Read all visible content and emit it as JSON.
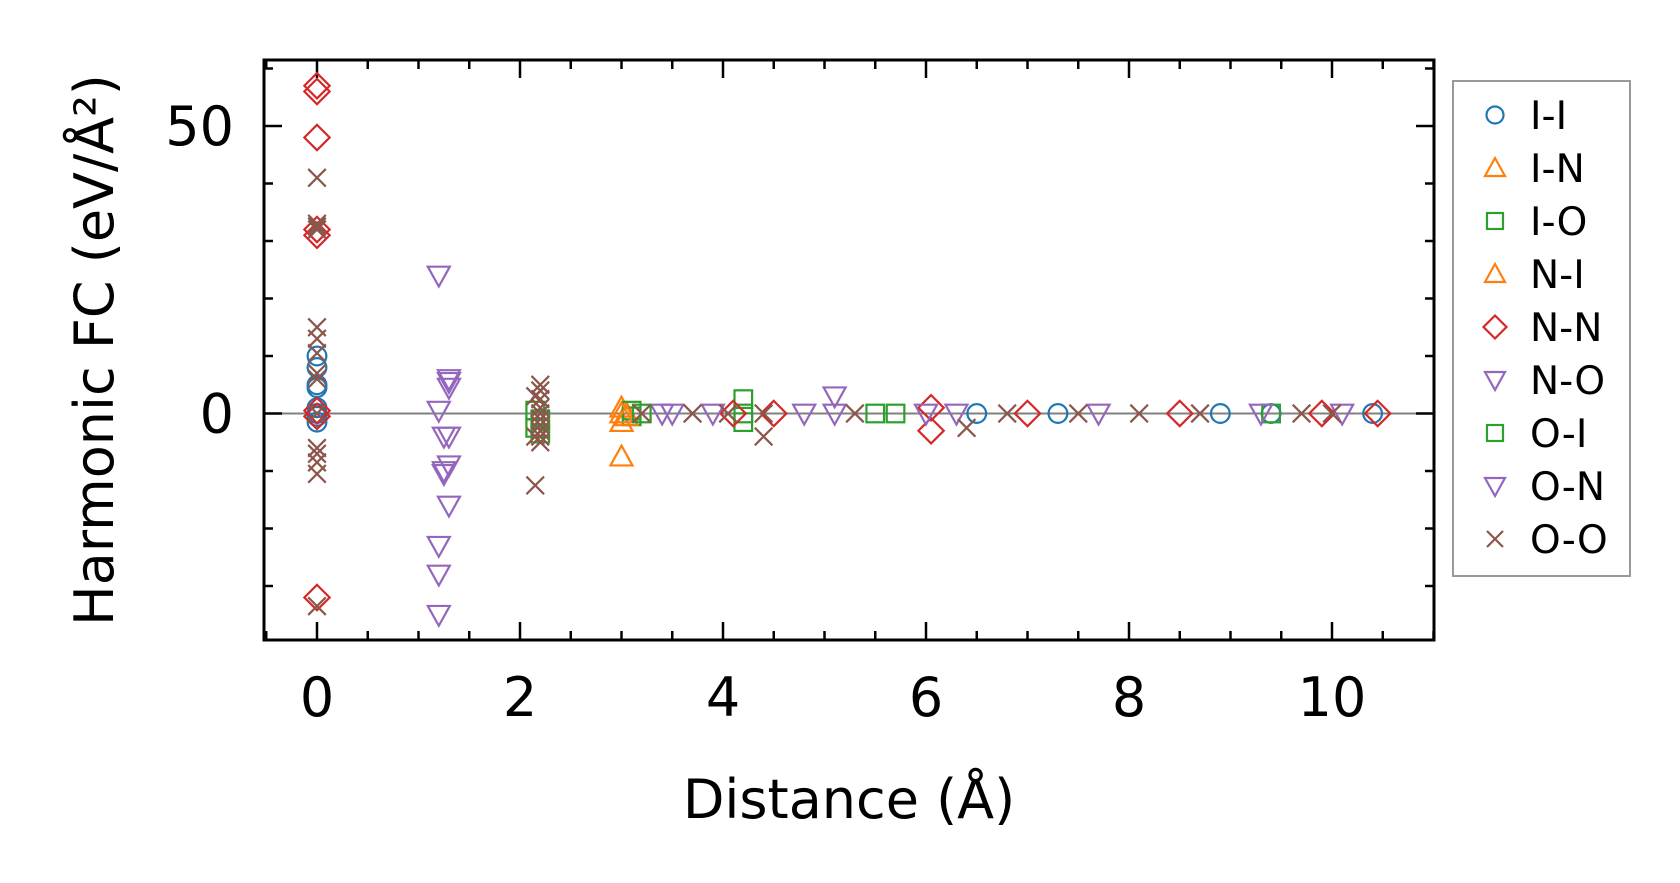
{
  "chart_data": {
    "type": "scatter",
    "xlabel": "Distance (Å)",
    "ylabel": "Harmonic FC (eV/Å²)",
    "xlim": [
      -0.5,
      11.0
    ],
    "ylim": [
      -40,
      62
    ],
    "x_ticks": [
      0,
      2,
      4,
      6,
      8,
      10
    ],
    "x_tick_labels": [
      "0",
      "2",
      "4",
      "6",
      "8",
      "10"
    ],
    "y_ticks": [
      0,
      50
    ],
    "y_tick_labels": [
      "0",
      "50"
    ],
    "grid": false,
    "zero_line": true,
    "legend_position": "right, outside plot",
    "series": [
      {
        "name": "I-I",
        "marker": "circle",
        "color": "#1f77b4",
        "points": [
          [
            0,
            10
          ],
          [
            0,
            8
          ],
          [
            0,
            5
          ],
          [
            0,
            4.5
          ],
          [
            0,
            1
          ],
          [
            0,
            0
          ],
          [
            0,
            -0.5
          ],
          [
            0,
            -1.5
          ],
          [
            10.4,
            0
          ],
          [
            9.4,
            0
          ],
          [
            8.9,
            0
          ],
          [
            6.5,
            0
          ],
          [
            7.3,
            0
          ]
        ]
      },
      {
        "name": "I-N",
        "marker": "triangle-up",
        "color": "#ff7f0e",
        "points": [
          [
            3.0,
            1
          ],
          [
            3.0,
            -1.5
          ],
          [
            3.0,
            -7.5
          ],
          [
            3.05,
            0
          ]
        ]
      },
      {
        "name": "I-O",
        "marker": "square",
        "color": "#2ca02c",
        "points": [
          [
            2.2,
            -1
          ],
          [
            2.2,
            -3.5
          ],
          [
            3.1,
            -0.5
          ],
          [
            3.1,
            0.5
          ],
          [
            4.2,
            2.5
          ],
          [
            4.2,
            0
          ],
          [
            4.2,
            -1.5
          ],
          [
            5.7,
            0
          ],
          [
            9.4,
            0
          ]
        ]
      },
      {
        "name": "N-I",
        "marker": "triangle-up",
        "color": "#ff7f0e",
        "points": [
          [
            3.0,
            0
          ],
          [
            3.05,
            -0.5
          ]
        ]
      },
      {
        "name": "N-N",
        "marker": "diamond",
        "color": "#d62728",
        "points": [
          [
            0,
            57
          ],
          [
            0,
            56
          ],
          [
            0,
            48
          ],
          [
            0,
            32
          ],
          [
            0,
            31
          ],
          [
            0,
            0.5
          ],
          [
            0,
            -0.5
          ],
          [
            0,
            -32
          ],
          [
            4.1,
            0
          ],
          [
            4.5,
            0
          ],
          [
            6.05,
            -3
          ],
          [
            6.05,
            1
          ],
          [
            7.0,
            0
          ],
          [
            8.5,
            0
          ],
          [
            9.9,
            0
          ],
          [
            10.45,
            0
          ]
        ]
      },
      {
        "name": "N-O",
        "marker": "triangle-down",
        "color": "#9467bd",
        "points": [
          [
            1.2,
            24
          ],
          [
            1.2,
            0.5
          ],
          [
            1.25,
            -4
          ],
          [
            1.25,
            -10
          ],
          [
            1.3,
            5.5
          ],
          [
            1.3,
            4.5
          ],
          [
            1.3,
            -4
          ],
          [
            1.3,
            -9
          ],
          [
            1.3,
            -16
          ],
          [
            1.2,
            -23
          ],
          [
            1.2,
            -28
          ],
          [
            1.2,
            -35
          ],
          [
            3.4,
            0
          ],
          [
            5.1,
            3
          ],
          [
            5.1,
            0
          ],
          [
            6.0,
            0
          ],
          [
            9.3,
            0
          ],
          [
            10.1,
            0
          ]
        ]
      },
      {
        "name": "O-I",
        "marker": "square",
        "color": "#2ca02c",
        "points": [
          [
            2.15,
            0.5
          ],
          [
            2.15,
            -2.5
          ],
          [
            3.2,
            0
          ],
          [
            5.5,
            0
          ]
        ]
      },
      {
        "name": "O-N",
        "marker": "triangle-down",
        "color": "#9467bd",
        "points": [
          [
            1.3,
            6
          ],
          [
            1.25,
            -10.5
          ],
          [
            3.5,
            0
          ],
          [
            3.9,
            0
          ],
          [
            4.8,
            0
          ],
          [
            6.3,
            0
          ],
          [
            7.7,
            0
          ]
        ]
      },
      {
        "name": "O-O",
        "marker": "x",
        "color": "#8c564b",
        "points": [
          [
            0,
            41
          ],
          [
            0,
            33
          ],
          [
            0,
            32.5
          ],
          [
            0,
            32
          ],
          [
            0,
            15
          ],
          [
            0,
            13
          ],
          [
            0,
            10.5
          ],
          [
            0,
            7
          ],
          [
            0,
            6
          ],
          [
            0,
            0
          ],
          [
            0,
            -6
          ],
          [
            0,
            -7
          ],
          [
            0,
            -8.5
          ],
          [
            0,
            -10.5
          ],
          [
            0,
            -33.5
          ],
          [
            2.15,
            -12.5
          ],
          [
            2.2,
            5
          ],
          [
            2.2,
            4
          ],
          [
            2.2,
            2.5
          ],
          [
            2.2,
            1
          ],
          [
            2.2,
            0
          ],
          [
            2.2,
            -1
          ],
          [
            2.2,
            -2
          ],
          [
            2.2,
            -3
          ],
          [
            2.2,
            -4
          ],
          [
            2.2,
            -5
          ],
          [
            2.15,
            3
          ],
          [
            2.15,
            -4
          ],
          [
            3.2,
            0
          ],
          [
            3.7,
            0
          ],
          [
            4.05,
            0
          ],
          [
            4.4,
            -4
          ],
          [
            4.4,
            0
          ],
          [
            5.3,
            0
          ],
          [
            6.4,
            -2.5
          ],
          [
            6.8,
            0
          ],
          [
            7.5,
            0
          ],
          [
            8.1,
            0
          ],
          [
            8.7,
            0
          ],
          [
            9.7,
            0
          ],
          [
            10.0,
            0
          ]
        ]
      }
    ]
  }
}
